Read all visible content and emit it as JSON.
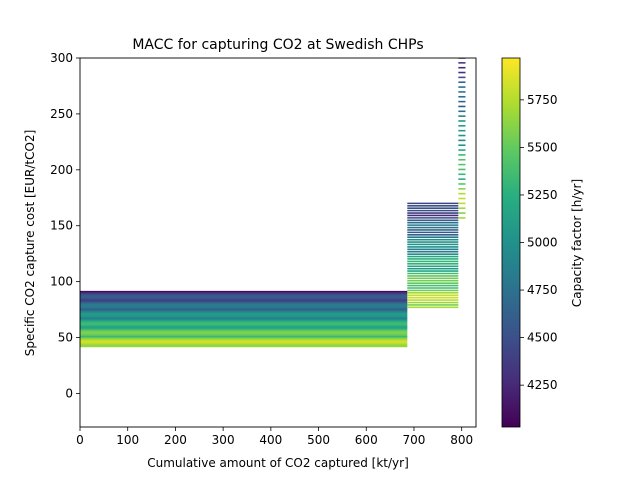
{
  "chart_data": {
    "type": "scatter",
    "title": "MACC for capturing CO2 at Swedish CHPs",
    "xlabel": "Cumulative amount of CO2 captured [kt/yr]",
    "ylabel": "Specific CO2 capture cost [EUR/tCO2]",
    "xlim": [
      0,
      830
    ],
    "ylim": [
      -30,
      300
    ],
    "xticks": [
      "0",
      "100",
      "200",
      "300",
      "400",
      "500",
      "600",
      "700",
      "800"
    ],
    "yticks": [
      "0",
      "50",
      "100",
      "150",
      "200",
      "250",
      "300"
    ],
    "colorbar": {
      "label": "Capacity factor [h/yr]",
      "range": [
        4030,
        5970
      ],
      "ticks": [
        "4250",
        "4500",
        "4750",
        "5000",
        "5250",
        "5500",
        "5750"
      ],
      "colormap": "viridis"
    },
    "groups": [
      {
        "x_start": 0,
        "x_end": 686,
        "y_min": 42,
        "y_max": 91,
        "lines": 46
      },
      {
        "x_start": 686,
        "x_end": 793,
        "y_min": 77,
        "y_max": 170,
        "lines": 44
      },
      {
        "x_start": 793,
        "x_end": 808,
        "y_min": 157,
        "y_max": 300,
        "lines": 34
      }
    ]
  }
}
